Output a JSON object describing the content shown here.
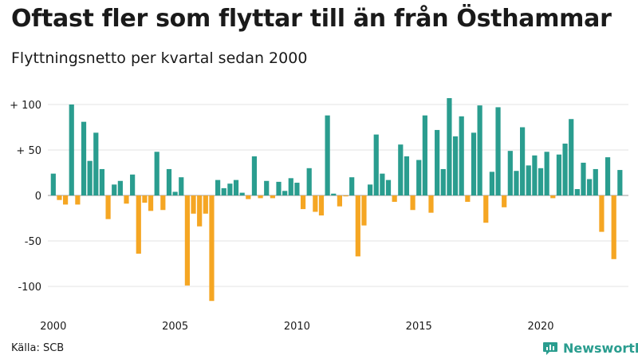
{
  "title": "Oftast fler som flyttar till än från Östhammar",
  "subtitle": "Flyttningsnetto per kvartal sedan 2000",
  "source": "Källa: SCB",
  "brand": {
    "name": "Newsworthy",
    "icon": "newsworthy-logo-icon",
    "color": "#2a9d8f"
  },
  "colors": {
    "positive": "#2a9d8f",
    "negative": "#f5a623",
    "grid": "#e3e3e3",
    "zero": "#999999"
  },
  "chart_data": {
    "type": "bar",
    "title": "Oftast fler som flyttar till än från Östhammar",
    "subtitle": "Flyttningsnetto per kvartal sedan 2000",
    "x_start": "2000-Q1",
    "x_tick_labels": [
      "2000",
      "2005",
      "2010",
      "2015",
      "2020"
    ],
    "y_tick_values": [
      100,
      50,
      0,
      -50,
      -100
    ],
    "y_tick_labels": [
      "+ 100",
      "+  50",
      "0",
      "-50",
      "-100"
    ],
    "ylim": [
      -120,
      110
    ],
    "grid": true,
    "values": [
      24,
      -5,
      -10,
      100,
      -10,
      81,
      38,
      69,
      29,
      -26,
      12,
      16,
      -9,
      23,
      -64,
      -8,
      -17,
      48,
      -16,
      29,
      4,
      20,
      -99,
      -20,
      -34,
      -20,
      -116,
      17,
      8,
      13,
      17,
      3,
      -4,
      43,
      -3,
      16,
      -3,
      15,
      5,
      19,
      14,
      -15,
      30,
      -18,
      -22,
      88,
      2,
      -12,
      -1,
      20,
      -67,
      -33,
      12,
      67,
      24,
      17,
      -7,
      56,
      43,
      -16,
      39,
      88,
      -19,
      72,
      29,
      107,
      65,
      87,
      -7,
      69,
      99,
      -30,
      26,
      97,
      -13,
      49,
      27,
      75,
      33,
      44,
      30,
      48,
      -3,
      45,
      57,
      84,
      7,
      36,
      18,
      29,
      -40,
      42,
      -70,
      28
    ]
  }
}
